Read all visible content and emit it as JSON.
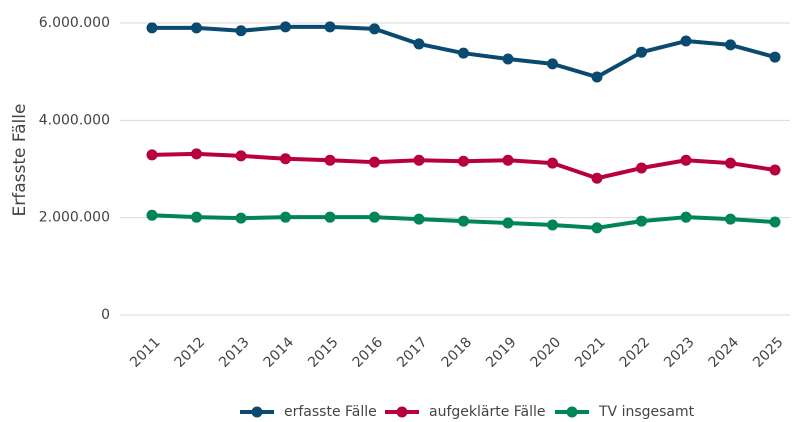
{
  "chart_data": {
    "type": "line",
    "ylabel": "Erfasste Fälle",
    "categories": [
      "2011",
      "2012",
      "2013",
      "2014",
      "2015",
      "2016",
      "2017",
      "2018",
      "2019",
      "2020",
      "2021",
      "2022",
      "2023",
      "2024",
      "2025"
    ],
    "series": [
      {
        "name": "erfasste Fälle",
        "color": "#0b4a70",
        "values": [
          5900000,
          5900000,
          5840000,
          5920000,
          5920000,
          5880000,
          5570000,
          5380000,
          5260000,
          5160000,
          4890000,
          5400000,
          5630000,
          5550000,
          5300000
        ]
      },
      {
        "name": "aufgeklärte Fälle",
        "color": "#b8003f",
        "values": [
          3290000,
          3310000,
          3270000,
          3210000,
          3180000,
          3140000,
          3180000,
          3160000,
          3180000,
          3120000,
          2810000,
          3020000,
          3180000,
          3120000,
          2980000
        ]
      },
      {
        "name": "TV insgesamt",
        "color": "#00845a",
        "values": [
          2050000,
          2010000,
          1990000,
          2010000,
          2010000,
          2010000,
          1970000,
          1930000,
          1890000,
          1850000,
          1790000,
          1930000,
          2010000,
          1970000,
          1910000
        ]
      }
    ],
    "ylim": [
      0,
      6000000
    ],
    "yticks": [
      0,
      {
        "value": 2000000,
        "label": "2.000.000"
      },
      {
        "value": 4000000,
        "label": "4.000.000"
      },
      {
        "value": 6000000,
        "label": "6.000.000"
      }
    ],
    "grid": true,
    "legend": "bottom"
  }
}
